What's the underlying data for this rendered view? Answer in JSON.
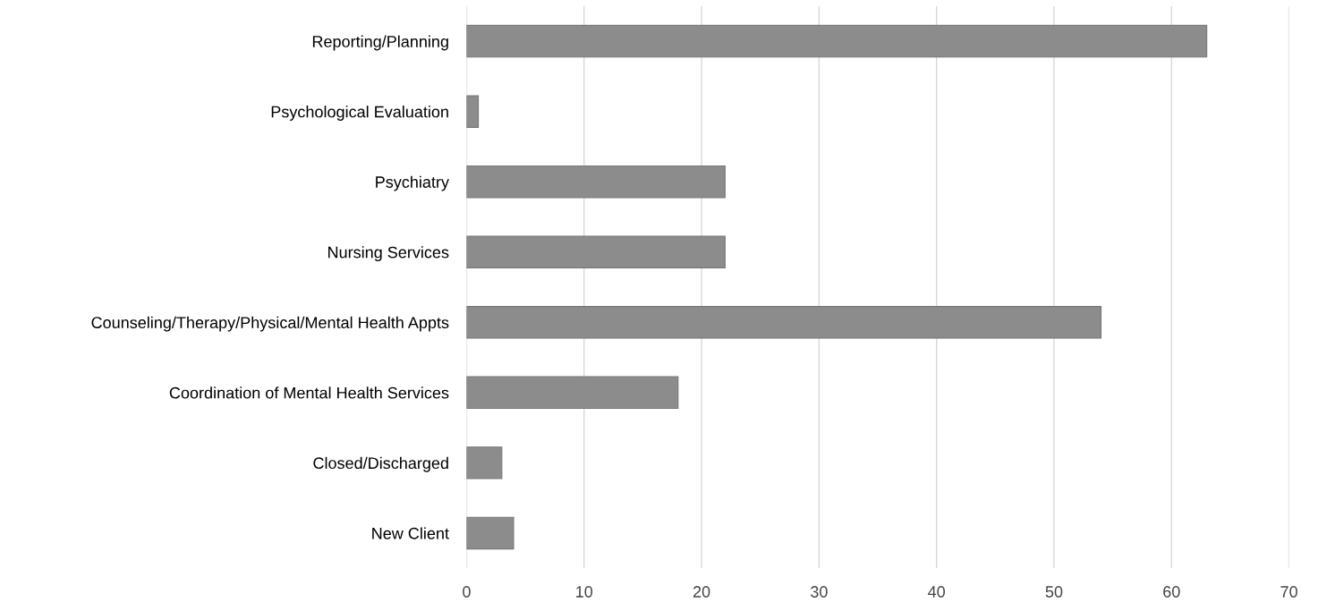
{
  "chart_data": {
    "type": "bar",
    "orientation": "horizontal",
    "categories": [
      "Reporting/Planning",
      "Psychological Evaluation",
      "Psychiatry",
      "Nursing Services",
      "Counseling/Therapy/Physical/Mental Health Appts",
      "Coordination of Mental Health Services",
      "Closed/Discharged",
      "New Client"
    ],
    "values": [
      63,
      1,
      22,
      22,
      54,
      18,
      3,
      4
    ],
    "color": "#8c8c8c",
    "xlim": [
      0,
      70
    ],
    "xticks": [
      0,
      10,
      20,
      30,
      40,
      50,
      60,
      70
    ],
    "grid": "x",
    "legend": false
  }
}
